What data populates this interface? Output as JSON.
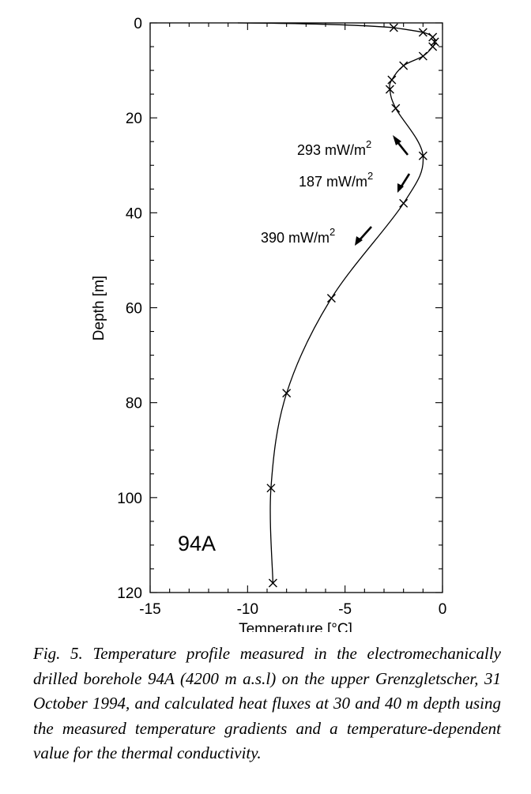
{
  "chart_data": {
    "type": "line",
    "title": "",
    "xlabel": "Temperature [°C]",
    "ylabel": "Depth [m]",
    "xlim": [
      -15,
      0
    ],
    "ylim": [
      120,
      0
    ],
    "y_inverted": true,
    "xticks": [
      "-15",
      "-10",
      "-5",
      "0"
    ],
    "yticks": [
      "0",
      "20",
      "40",
      "60",
      "80",
      "100",
      "120"
    ],
    "series": [
      {
        "marker": "x",
        "points": [
          {
            "x": -2.5,
            "y": 1
          },
          {
            "x": -1.0,
            "y": 2
          },
          {
            "x": -0.5,
            "y": 3
          },
          {
            "x": -0.4,
            "y": 4
          },
          {
            "x": -0.5,
            "y": 5
          },
          {
            "x": -1.0,
            "y": 7
          },
          {
            "x": -2.0,
            "y": 9
          },
          {
            "x": -2.6,
            "y": 12
          },
          {
            "x": -2.7,
            "y": 14
          },
          {
            "x": -2.4,
            "y": 18
          },
          {
            "x": -1.0,
            "y": 28
          },
          {
            "x": -2.0,
            "y": 38
          },
          {
            "x": -5.7,
            "y": 58
          },
          {
            "x": -8.0,
            "y": 78
          },
          {
            "x": -8.8,
            "y": 98
          },
          {
            "x": -8.7,
            "y": 118
          }
        ]
      }
    ],
    "annotations": [
      {
        "text": "293 mW/m",
        "superscript": "2",
        "arrow": "up-left"
      },
      {
        "text": "187 mW/m",
        "superscript": "2",
        "arrow": "down-left"
      },
      {
        "text": "390 mW/m",
        "superscript": "2",
        "arrow": "down-left"
      }
    ],
    "panel_label": "94A",
    "grid": false,
    "legend": "none"
  },
  "caption": "Fig. 5. Temperature profile measured in the electromechanically drilled borehole 94A (4200 m a.s.l) on the upper Grenz­gletscher, 31 October 1994, and calculated heat fluxes at 30 and 40 m depth using the measured temperature gradients and a temperature-dependent value for the thermal conductivity."
}
